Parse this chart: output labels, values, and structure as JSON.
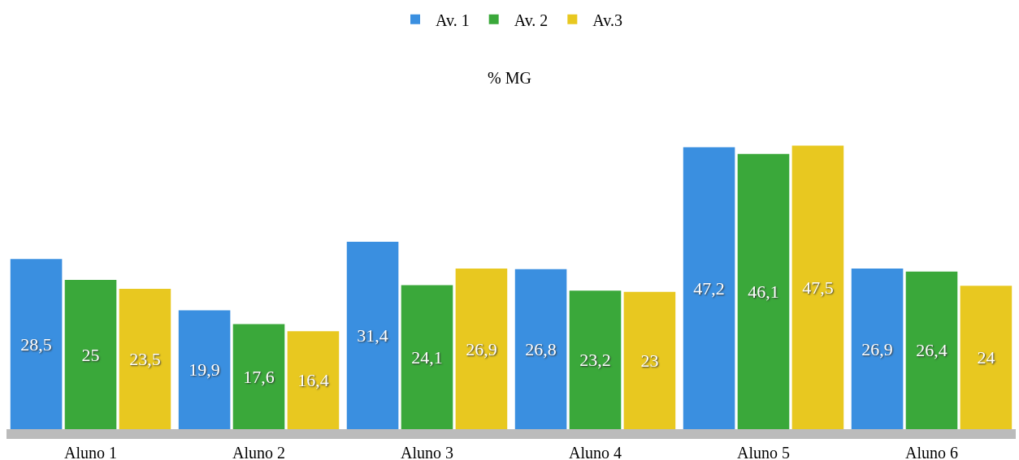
{
  "chart_data": {
    "type": "bar",
    "title": "% MG",
    "categories": [
      "Aluno 1",
      "Aluno 2",
      "Aluno 3",
      "Aluno 4",
      "Aluno 5",
      "Aluno 6"
    ],
    "series": [
      {
        "name": "Av. 1",
        "color": "#3a8fe0",
        "values": [
          28.5,
          19.9,
          31.4,
          26.8,
          47.2,
          26.9
        ],
        "value_labels": [
          "28,5",
          "19,9",
          "31,4",
          "26,8",
          "47,2",
          "26,9"
        ]
      },
      {
        "name": "Av. 2",
        "color": "#3aa83a",
        "values": [
          25,
          17.6,
          24.1,
          23.2,
          46.1,
          26.4
        ],
        "value_labels": [
          "25",
          "17,6",
          "24,1",
          "23,2",
          "46,1",
          "26,4"
        ]
      },
      {
        "name": "Av.3",
        "color": "#e8c820",
        "values": [
          23.5,
          16.4,
          26.9,
          23,
          47.5,
          24
        ],
        "value_labels": [
          "23,5",
          "16,4",
          "26,9",
          "23",
          "47,5",
          "24"
        ]
      }
    ],
    "grid": false,
    "legend": "top"
  }
}
